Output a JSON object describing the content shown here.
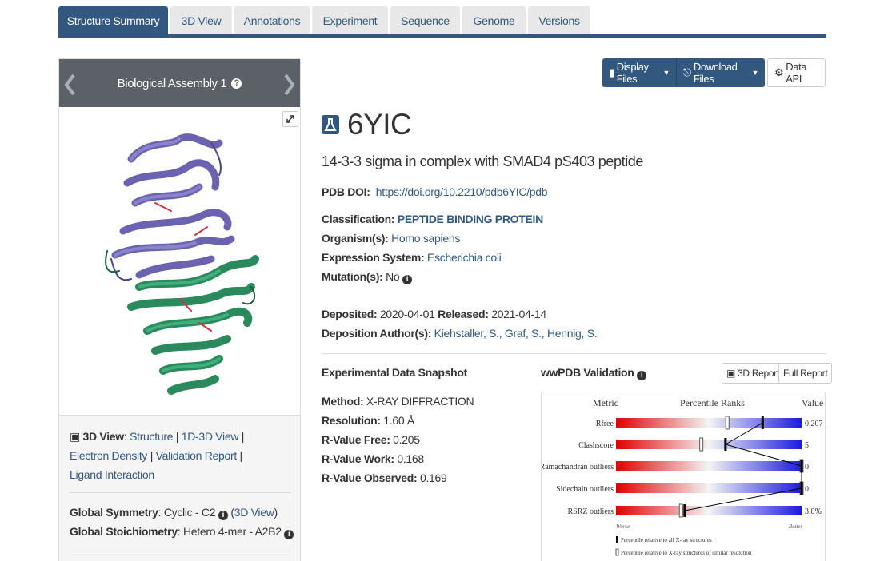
{
  "tabs": [
    {
      "label": "Structure Summary"
    },
    {
      "label": "3D View"
    },
    {
      "label": "Annotations"
    },
    {
      "label": "Experiment"
    },
    {
      "label": "Sequence"
    },
    {
      "label": "Genome"
    },
    {
      "label": "Versions"
    }
  ],
  "carousel": {
    "title": "Biological Assembly 1"
  },
  "view_links": {
    "label": "3D View",
    "links": [
      "Structure",
      "1D-3D View",
      "Electron Density",
      "Validation Report",
      "Ligand Interaction"
    ]
  },
  "symmetry": {
    "global_symmetry_label": "Global Symmetry",
    "global_symmetry_value": "Cyclic - C2",
    "global_symmetry_link": "3D View",
    "stoichiometry_label": "Global Stoichiometry",
    "stoichiometry_value": "Hetero 4-mer - A2B2"
  },
  "buttons": {
    "display_files": "Display Files",
    "download_files": "Download Files",
    "data_api": "Data API"
  },
  "entry": {
    "id": "6YIC",
    "title": "14-3-3 sigma in complex with SMAD4 pS403 peptide",
    "doi_label": "PDB DOI:",
    "doi": "https://doi.org/10.2210/pdb6YIC/pdb",
    "classification_label": "Classification:",
    "classification": "PEPTIDE BINDING PROTEIN",
    "organism_label": "Organism(s):",
    "organism": "Homo sapiens",
    "expression_label": "Expression System:",
    "expression": "Escherichia coli",
    "mutation_label": "Mutation(s):",
    "mutation": "No",
    "deposited_label": "Deposited:",
    "deposited": "2020-04-01",
    "released_label": "Released:",
    "released": "2021-04-14",
    "authors_label": "Deposition Author(s):",
    "authors": "Kiehstaller, S., Graf, S., Hennig, S."
  },
  "experimental": {
    "title": "Experimental Data Snapshot",
    "method_label": "Method:",
    "method": "X-RAY DIFFRACTION",
    "resolution_label": "Resolution:",
    "resolution": "1.60 Å",
    "rfree_label": "R-Value Free:",
    "rfree": "0.205",
    "rwork_label": "R-Value Work:",
    "rwork": "0.168",
    "robs_label": "R-Value Observed:",
    "robs": "0.169"
  },
  "validation": {
    "title": "wwPDB Validation",
    "report_3d": "3D Report",
    "full_report": "Full Report",
    "header_metric": "Metric",
    "header_ranks": "Percentile Ranks",
    "header_value": "Value",
    "worse": "Worse",
    "better": "Better",
    "legend_all": "Percentile relative to all X-ray structures",
    "legend_similar": "Percentile relative to X-ray structures of similar resolution",
    "metrics": [
      {
        "name": "Rfree",
        "value": "0.207",
        "pct_all": 0.6,
        "pct_sim": 0.79
      },
      {
        "name": "Clashscore",
        "value": "5",
        "pct_all": 0.46,
        "pct_sim": 0.59
      },
      {
        "name": "Ramachandran outliers",
        "value": "0",
        "pct_all": 1.0,
        "pct_sim": 1.0
      },
      {
        "name": "Sidechain outliers",
        "value": "0",
        "pct_all": 1.0,
        "pct_sim": 1.0
      },
      {
        "name": "RSRZ outliers",
        "value": "3.8%",
        "pct_all": 0.35,
        "pct_sim": 0.37
      }
    ]
  },
  "colors": {
    "brand": "#325880",
    "header_grey": "#5b6166",
    "worse": "#e00000",
    "better": "#1a1ae0"
  }
}
